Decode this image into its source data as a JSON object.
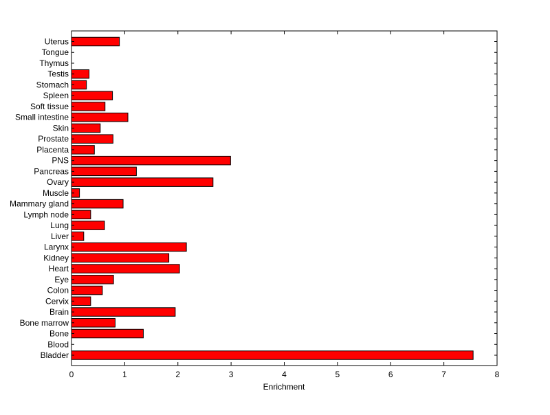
{
  "chart_data": {
    "type": "bar",
    "orientation": "horizontal",
    "xlabel": "Enrichment",
    "ylabel": "",
    "title": "",
    "xlim": [
      0,
      8
    ],
    "xticks": [
      0,
      1,
      2,
      3,
      4,
      5,
      6,
      7,
      8
    ],
    "grid": false,
    "bar_color": "#ff0000",
    "bar_edge_color": "#000000",
    "categories": [
      "Bladder",
      "Blood",
      "Bone",
      "Bone marrow",
      "Brain",
      "Cervix",
      "Colon",
      "Eye",
      "Heart",
      "Kidney",
      "Larynx",
      "Liver",
      "Lung",
      "Lymph node",
      "Mammary gland",
      "Muscle",
      "Ovary",
      "Pancreas",
      "PNS",
      "Placenta",
      "Prostate",
      "Skin",
      "Small intestine",
      "Soft tissue",
      "Spleen",
      "Stomach",
      "Testis",
      "Thymus",
      "Tongue",
      "Uterus"
    ],
    "values": [
      7.55,
      0.0,
      1.35,
      0.82,
      1.95,
      0.36,
      0.58,
      0.79,
      2.03,
      1.83,
      2.16,
      0.23,
      0.62,
      0.36,
      0.97,
      0.15,
      2.66,
      1.22,
      2.99,
      0.43,
      0.78,
      0.54,
      1.06,
      0.63,
      0.77,
      0.28,
      0.33,
      0.0,
      0.0,
      0.9
    ]
  }
}
